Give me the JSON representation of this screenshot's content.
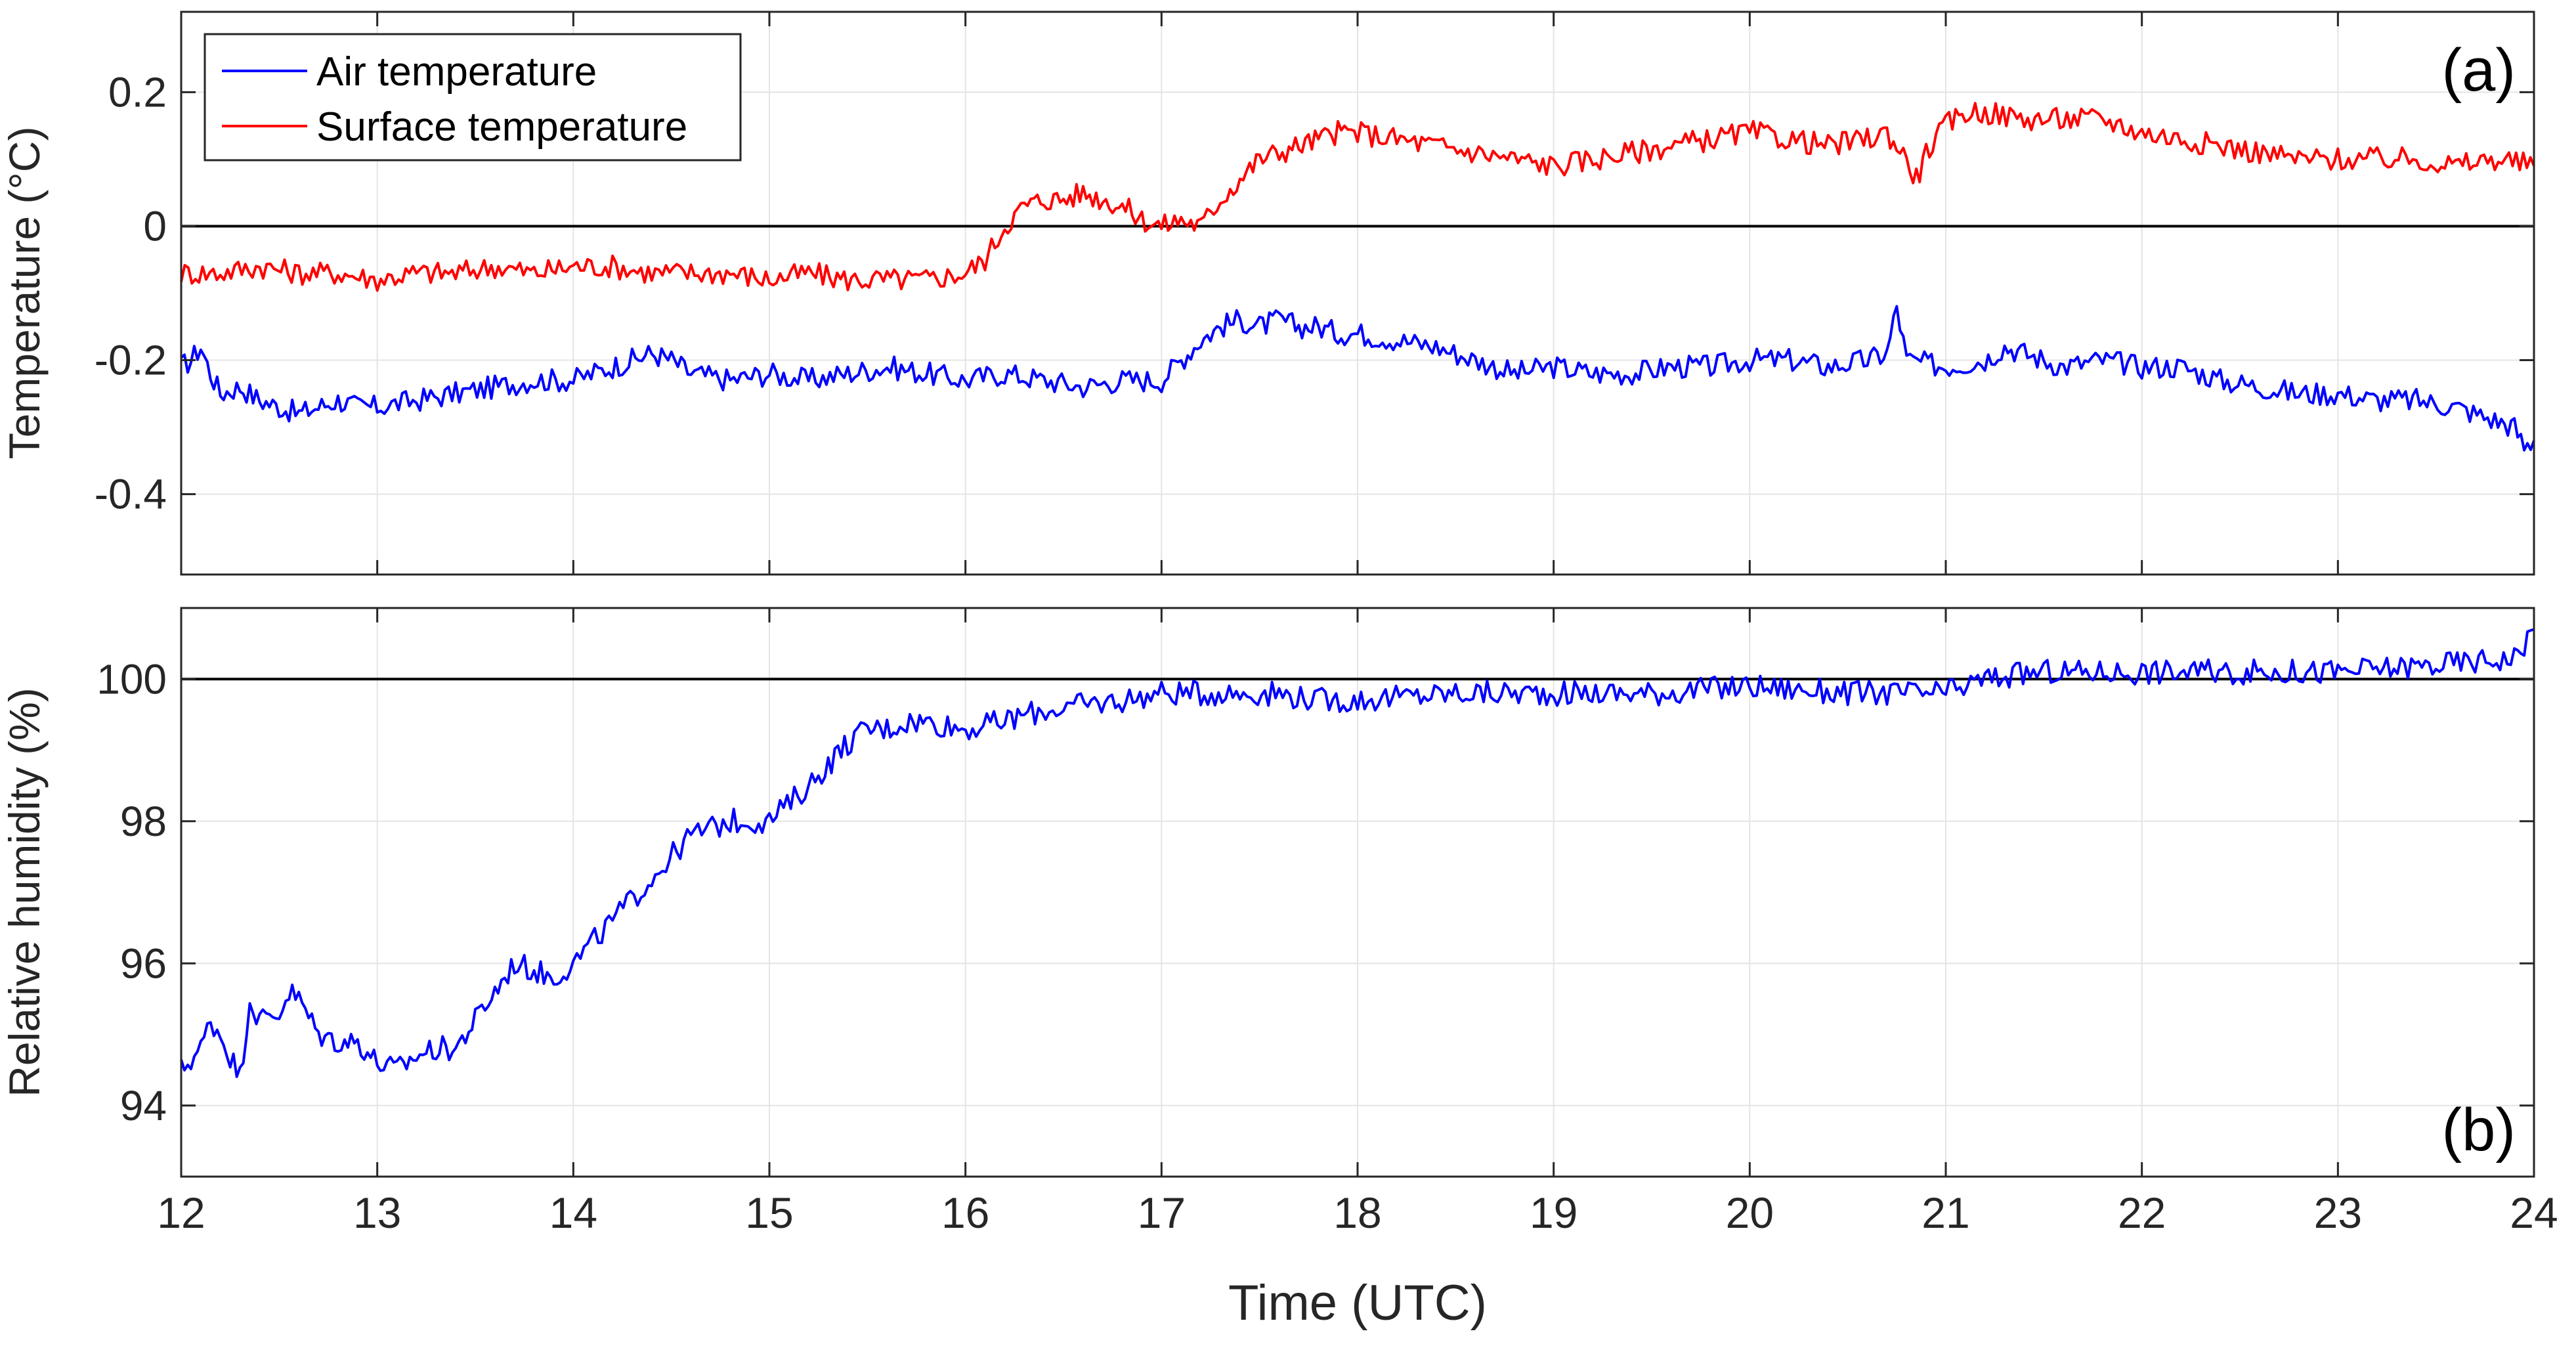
{
  "figure": {
    "xlabel": "Time (UTC)",
    "x_ticks": [
      12,
      13,
      14,
      15,
      16,
      17,
      18,
      19,
      20,
      21,
      22,
      23,
      24
    ]
  },
  "chart_data": [
    {
      "type": "line",
      "panel_label": "(a)",
      "xlabel": "Time (UTC)",
      "ylabel": "Temperature (°C)",
      "xlim": [
        12,
        24
      ],
      "ylim": [
        -0.52,
        0.32
      ],
      "y_ticks": [
        -0.4,
        -0.2,
        0,
        0.2
      ],
      "y_tick_labels": [
        "-0.4",
        "-0.2",
        "0",
        "0.2"
      ],
      "grid": true,
      "legend_position": "top-left",
      "reference_line": 0,
      "series": [
        {
          "name": "Air temperature",
          "color": "#0000ff",
          "x": [
            12.0,
            12.05,
            12.1,
            12.15,
            12.2,
            12.3,
            12.4,
            12.5,
            12.6,
            12.7,
            12.8,
            12.9,
            13.0,
            13.2,
            13.4,
            13.6,
            13.8,
            14.0,
            14.2,
            14.3,
            14.4,
            14.5,
            14.6,
            14.8,
            15.0,
            15.2,
            15.4,
            15.6,
            15.8,
            16.0,
            16.2,
            16.4,
            16.6,
            16.8,
            17.0,
            17.1,
            17.2,
            17.3,
            17.4,
            17.5,
            17.6,
            17.7,
            17.8,
            17.9,
            18.0,
            18.2,
            18.4,
            18.6,
            18.8,
            19.0,
            19.2,
            19.4,
            19.6,
            19.8,
            20.0,
            20.2,
            20.4,
            20.6,
            20.7,
            20.75,
            20.8,
            21.0,
            21.2,
            21.3,
            21.4,
            21.5,
            21.6,
            21.8,
            22.0,
            22.2,
            22.4,
            22.6,
            22.8,
            23.0,
            23.2,
            23.4,
            23.6,
            23.8,
            23.9,
            23.95,
            24.0
          ],
          "y": [
            -0.21,
            -0.2,
            -0.18,
            -0.22,
            -0.25,
            -0.24,
            -0.26,
            -0.27,
            -0.28,
            -0.27,
            -0.26,
            -0.27,
            -0.27,
            -0.26,
            -0.25,
            -0.24,
            -0.23,
            -0.23,
            -0.21,
            -0.2,
            -0.19,
            -0.2,
            -0.22,
            -0.23,
            -0.22,
            -0.23,
            -0.22,
            -0.21,
            -0.22,
            -0.23,
            -0.22,
            -0.23,
            -0.24,
            -0.23,
            -0.23,
            -0.2,
            -0.17,
            -0.15,
            -0.14,
            -0.15,
            -0.14,
            -0.15,
            -0.15,
            -0.16,
            -0.16,
            -0.17,
            -0.18,
            -0.2,
            -0.22,
            -0.21,
            -0.22,
            -0.22,
            -0.21,
            -0.21,
            -0.2,
            -0.2,
            -0.21,
            -0.2,
            -0.19,
            -0.12,
            -0.2,
            -0.21,
            -0.2,
            -0.18,
            -0.19,
            -0.2,
            -0.21,
            -0.2,
            -0.21,
            -0.21,
            -0.23,
            -0.24,
            -0.25,
            -0.25,
            -0.26,
            -0.26,
            -0.27,
            -0.29,
            -0.3,
            -0.33,
            -0.32
          ]
        },
        {
          "name": "Surface temperature",
          "color": "#ff0000",
          "x": [
            12.0,
            12.2,
            12.4,
            12.6,
            12.8,
            13.0,
            13.2,
            13.4,
            13.6,
            13.8,
            14.0,
            14.2,
            14.4,
            14.6,
            14.8,
            15.0,
            15.2,
            15.4,
            15.6,
            15.8,
            16.0,
            16.1,
            16.2,
            16.3,
            16.4,
            16.5,
            16.6,
            16.7,
            16.8,
            16.9,
            17.0,
            17.1,
            17.2,
            17.3,
            17.4,
            17.5,
            17.6,
            17.7,
            17.8,
            17.9,
            18.0,
            18.2,
            18.4,
            18.6,
            18.8,
            19.0,
            19.2,
            19.4,
            19.6,
            19.8,
            20.0,
            20.2,
            20.4,
            20.6,
            20.7,
            20.8,
            20.85,
            20.9,
            21.0,
            21.1,
            21.2,
            21.4,
            21.6,
            21.8,
            22.0,
            22.2,
            22.4,
            22.6,
            22.8,
            23.0,
            23.2,
            23.4,
            23.6,
            23.8,
            24.0
          ],
          "y": [
            -0.07,
            -0.07,
            -0.06,
            -0.07,
            -0.07,
            -0.08,
            -0.07,
            -0.07,
            -0.06,
            -0.07,
            -0.06,
            -0.06,
            -0.07,
            -0.07,
            -0.07,
            -0.08,
            -0.07,
            -0.08,
            -0.08,
            -0.08,
            -0.07,
            -0.05,
            0.0,
            0.03,
            0.04,
            0.04,
            0.05,
            0.04,
            0.03,
            0.01,
            0.0,
            0.01,
            0.0,
            0.04,
            0.07,
            0.1,
            0.11,
            0.12,
            0.13,
            0.14,
            0.14,
            0.13,
            0.12,
            0.11,
            0.1,
            0.09,
            0.1,
            0.11,
            0.12,
            0.13,
            0.14,
            0.13,
            0.12,
            0.13,
            0.14,
            0.1,
            0.07,
            0.11,
            0.15,
            0.17,
            0.17,
            0.16,
            0.16,
            0.16,
            0.14,
            0.13,
            0.12,
            0.11,
            0.1,
            0.1,
            0.1,
            0.1,
            0.09,
            0.1,
            0.09
          ]
        }
      ]
    },
    {
      "type": "line",
      "panel_label": "(b)",
      "xlabel": "Time (UTC)",
      "ylabel": "Relative humidity (%)",
      "xlim": [
        12,
        24
      ],
      "ylim": [
        93,
        101
      ],
      "y_ticks": [
        94,
        96,
        98,
        100
      ],
      "y_tick_labels": [
        "94",
        "96",
        "98",
        "100"
      ],
      "grid": true,
      "reference_line": 100,
      "series": [
        {
          "color": "#0000ff",
          "x": [
            12.0,
            12.1,
            12.15,
            12.2,
            12.3,
            12.35,
            12.4,
            12.5,
            12.55,
            12.6,
            12.7,
            12.8,
            12.9,
            13.0,
            13.1,
            13.2,
            13.3,
            13.4,
            13.5,
            13.6,
            13.7,
            13.8,
            13.9,
            14.0,
            14.2,
            14.4,
            14.6,
            14.8,
            15.0,
            15.2,
            15.3,
            15.4,
            15.5,
            15.6,
            15.7,
            15.8,
            16.0,
            16.2,
            16.3,
            16.5,
            16.8,
            17.0,
            17.2,
            17.4,
            17.6,
            17.8,
            18.0,
            18.5,
            19.0,
            19.5,
            20.0,
            20.5,
            20.9,
            21.0,
            21.2,
            21.5,
            22.0,
            22.5,
            23.0,
            23.5,
            23.9,
            24.0
          ],
          "y": [
            94.5,
            94.8,
            95.2,
            95.0,
            94.4,
            95.5,
            95.2,
            95.3,
            95.6,
            95.5,
            95.0,
            94.9,
            94.9,
            94.6,
            94.5,
            94.7,
            94.8,
            94.8,
            95.2,
            95.6,
            96.0,
            95.9,
            95.8,
            96.0,
            96.6,
            97.2,
            97.8,
            98.0,
            98.0,
            98.5,
            98.8,
            99.1,
            99.3,
            99.3,
            99.4,
            99.4,
            99.3,
            99.4,
            99.5,
            99.6,
            99.7,
            99.8,
            99.8,
            99.8,
            99.8,
            99.7,
            99.7,
            99.8,
            99.8,
            99.8,
            99.9,
            99.8,
            99.8,
            99.8,
            100.0,
            100.1,
            100.1,
            100.1,
            100.1,
            100.2,
            100.3,
            100.7
          ]
        }
      ]
    }
  ]
}
